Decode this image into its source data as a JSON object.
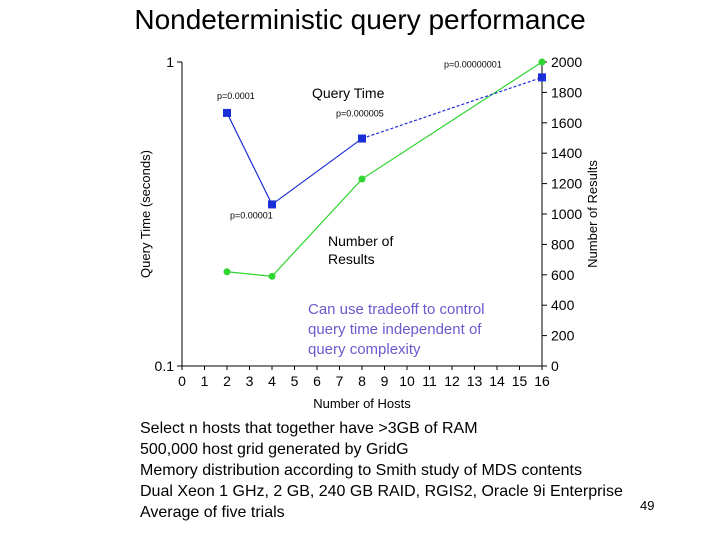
{
  "slide": {
    "title": "Nondeterministic query performance",
    "page_number": "49",
    "bullets": [
      "Select n hosts that together have >3GB of RAM",
      "500,000 host grid generated by GridG",
      "Memory distribution according to Smith study of MDS contents",
      "Dual Xeon 1 GHz, 2 GB, 240 GB RAID, RGIS2, Oracle 9i Enterprise",
      "Average of five trials"
    ]
  },
  "chart_data": {
    "type": "line",
    "title": "",
    "xlabel": "Number of Hosts",
    "ylabel": "Query Time (seconds)",
    "y2label": "Number of Results",
    "x_ticks": [
      "0",
      "1",
      "2",
      "3",
      "4",
      "5",
      "6",
      "7",
      "8",
      "9",
      "10",
      "11",
      "12",
      "13",
      "14",
      "15",
      "16"
    ],
    "xlim": [
      0,
      16
    ],
    "y_left_ticks": [
      "1",
      "0.1"
    ],
    "y_left_scale": "log",
    "y_left_lim": [
      0.1,
      1
    ],
    "y_right_ticks": [
      "2000",
      "1800",
      "1600",
      "1400",
      "1200",
      "1000",
      "800",
      "600",
      "400",
      "200",
      "0"
    ],
    "y_right_lim": [
      0,
      2000
    ],
    "grid": false,
    "series": [
      {
        "name": "Query Time",
        "axis": "left",
        "color": "#1b2fd6",
        "marker": "square",
        "x": [
          2,
          4,
          8,
          16
        ],
        "y": [
          0.68,
          0.34,
          0.56,
          0.89
        ],
        "point_labels": [
          "p=0.0001",
          "p=0.00001",
          "p=0.000005",
          "p=0.00000001"
        ]
      },
      {
        "name": "Number of\nResults",
        "axis": "right",
        "color": "#2fd62f",
        "marker": "circle",
        "x": [
          2,
          4,
          8,
          16
        ],
        "y": [
          620,
          590,
          1230,
          2000
        ]
      }
    ],
    "annotations": [
      "Can use tradeoff to control",
      "query time independent of",
      "query complexity"
    ]
  },
  "colors": {
    "query_time": "#1b2fd6",
    "results": "#2fd62f",
    "annotation": "#6a5acd"
  }
}
